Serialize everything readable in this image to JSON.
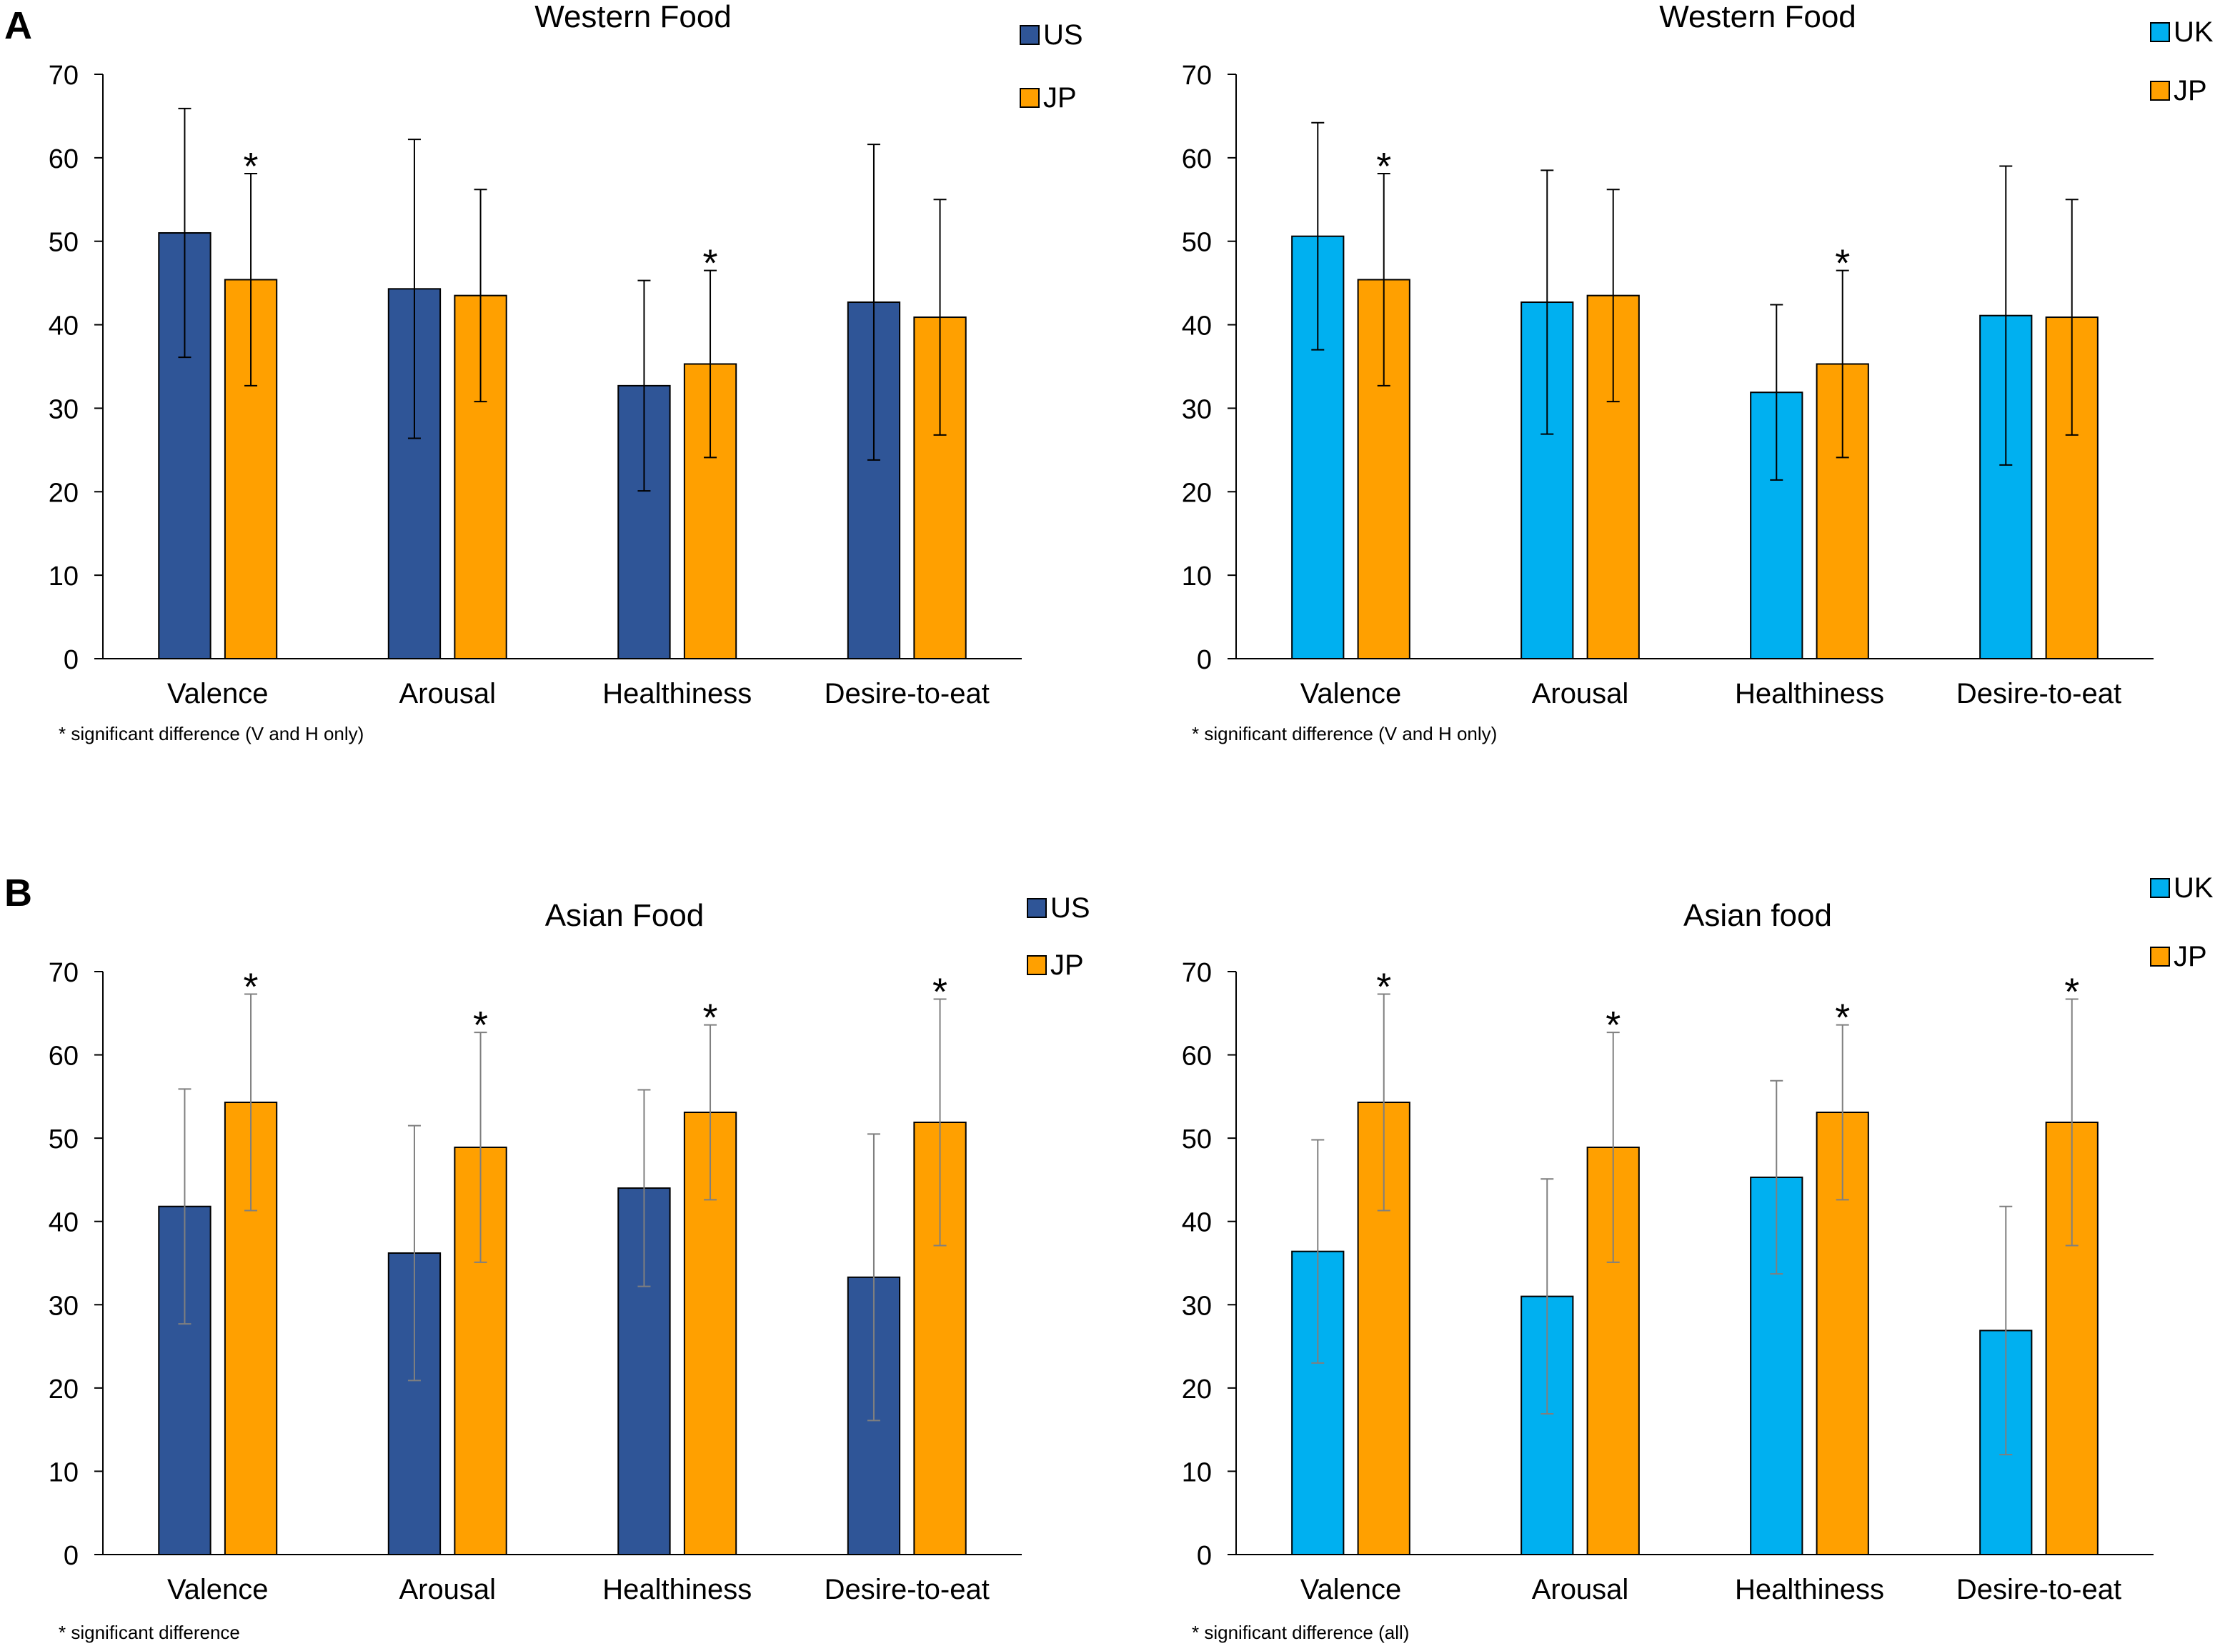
{
  "panel_labels": [
    "A",
    "B"
  ],
  "colors": {
    "us": "#2f5597",
    "uk": "#00b0f0",
    "jp": "#ffa000"
  },
  "chart_data": [
    {
      "type": "bar",
      "panel": "A",
      "title": "Western Food",
      "categories": [
        "Valence",
        "Arousal",
        "Healthiness",
        "Desire-to-eat"
      ],
      "ylim": [
        0,
        70
      ],
      "yticks": [
        0,
        10,
        20,
        30,
        40,
        50,
        60,
        70
      ],
      "xlabel": "",
      "ylabel": "",
      "grid": false,
      "legend_position": "top-right",
      "series": [
        {
          "name": "US",
          "color": "#2f5597",
          "values": [
            51.0,
            44.3,
            32.7,
            42.7
          ],
          "errors": [
            14.9,
            17.9,
            12.6,
            18.9
          ]
        },
        {
          "name": "JP",
          "color": "#ffa000",
          "values": [
            45.4,
            43.5,
            35.3,
            40.9
          ],
          "errors": [
            12.7,
            12.7,
            11.2,
            14.1
          ]
        }
      ],
      "significance": [
        true,
        false,
        true,
        false
      ],
      "footnote": "* significant difference (V and H only)"
    },
    {
      "type": "bar",
      "panel": "A",
      "title": "Western Food",
      "categories": [
        "Valence",
        "Arousal",
        "Healthiness",
        "Desire-to-eat"
      ],
      "ylim": [
        0,
        70
      ],
      "yticks": [
        0,
        10,
        20,
        30,
        40,
        50,
        60,
        70
      ],
      "xlabel": "",
      "ylabel": "",
      "grid": false,
      "legend_position": "top-right",
      "series": [
        {
          "name": "UK",
          "color": "#00b0f0",
          "values": [
            50.6,
            42.7,
            31.9,
            41.1
          ],
          "errors": [
            13.6,
            15.8,
            10.5,
            17.9
          ]
        },
        {
          "name": "JP",
          "color": "#ffa000",
          "values": [
            45.4,
            43.5,
            35.3,
            40.9
          ],
          "errors": [
            12.7,
            12.7,
            11.2,
            14.1
          ]
        }
      ],
      "significance": [
        true,
        false,
        true,
        false
      ],
      "footnote": "* significant difference (V and H only)"
    },
    {
      "type": "bar",
      "panel": "B",
      "title": "Asian Food",
      "categories": [
        "Valence",
        "Arousal",
        "Healthiness",
        "Desire-to-eat"
      ],
      "ylim": [
        0,
        70
      ],
      "yticks": [
        0,
        10,
        20,
        30,
        40,
        50,
        60,
        70
      ],
      "xlabel": "",
      "ylabel": "",
      "grid": false,
      "legend_position": "top-right",
      "series": [
        {
          "name": "US",
          "color": "#2f5597",
          "values": [
            41.8,
            36.2,
            44.0,
            33.3
          ],
          "errors": [
            14.1,
            15.3,
            11.8,
            17.2
          ]
        },
        {
          "name": "JP",
          "color": "#ffa000",
          "values": [
            54.3,
            48.9,
            53.1,
            51.9
          ],
          "errors": [
            13.0,
            13.8,
            10.5,
            14.8
          ]
        }
      ],
      "significance": [
        true,
        true,
        true,
        true
      ],
      "footnote": "* significant difference"
    },
    {
      "type": "bar",
      "panel": "B",
      "title": "Asian food",
      "categories": [
        "Valence",
        "Arousal",
        "Healthiness",
        "Desire-to-eat"
      ],
      "ylim": [
        0,
        70
      ],
      "yticks": [
        0,
        10,
        20,
        30,
        40,
        50,
        60,
        70
      ],
      "xlabel": "",
      "ylabel": "",
      "grid": false,
      "legend_position": "top-right",
      "series": [
        {
          "name": "UK",
          "color": "#00b0f0",
          "values": [
            36.4,
            31.0,
            45.3,
            26.9
          ],
          "errors": [
            13.4,
            14.1,
            11.6,
            14.9
          ]
        },
        {
          "name": "JP",
          "color": "#ffa000",
          "values": [
            54.3,
            48.9,
            53.1,
            51.9
          ],
          "errors": [
            13.0,
            13.8,
            10.5,
            14.8
          ]
        }
      ],
      "significance": [
        true,
        true,
        true,
        true
      ],
      "footnote": "* significant difference (all)"
    }
  ]
}
